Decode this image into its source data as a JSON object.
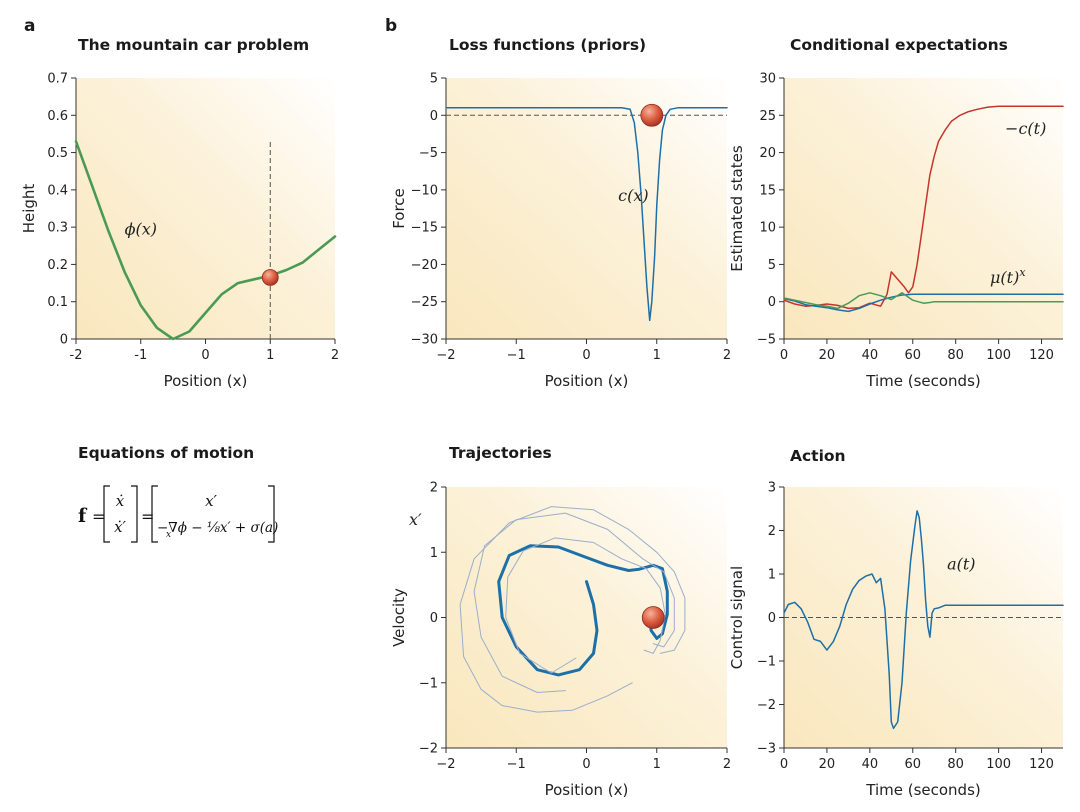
{
  "labels": {
    "a": "a",
    "b": "b"
  },
  "colors": {
    "bg_warm": "#f9e7bd",
    "green": "#4a9a55",
    "blue": "#1d6fa8",
    "red": "#c8342b",
    "light_blue": "#9aaecb",
    "ball_light": "#f2a488",
    "ball_dark": "#b83a26",
    "dash": "#555555"
  },
  "equations": {
    "title": "Equations of motion",
    "lhs": "f",
    "eq1": "=",
    "eq2": "=",
    "vec_top": "ẋ",
    "vec_bottom": "ẋ′",
    "rhs_top": "x′",
    "rhs_bottom": "−∇ϕ − ⅛x′ + σ(a)",
    "nabla_sub": "x"
  },
  "chart_data": [
    {
      "id": "mountain",
      "type": "line",
      "title": "The mountain car problem",
      "xlabel": "Position (x)",
      "ylabel": "Height",
      "xlim": [
        -2,
        2
      ],
      "ylim": [
        0,
        0.7
      ],
      "xticks": [
        -2,
        -1,
        0,
        1,
        2
      ],
      "xtick_labels": [
        "-2",
        "-1",
        "0",
        "1",
        "2"
      ],
      "yticks": [
        0,
        0.1,
        0.2,
        0.3,
        0.4,
        0.5,
        0.6,
        0.7
      ],
      "ytick_labels": [
        "0",
        "0.1",
        "0.2",
        "0.3",
        "0.4",
        "0.5",
        "0.6",
        "0.7"
      ],
      "series": [
        {
          "name": "phi",
          "color": "green",
          "x": [
            -2,
            -1.75,
            -1.5,
            -1.25,
            -1,
            -0.75,
            -0.5,
            -0.25,
            0,
            0.25,
            0.5,
            0.75,
            1,
            1.25,
            1.5,
            1.75,
            2
          ],
          "y": [
            0.53,
            0.41,
            0.29,
            0.18,
            0.09,
            0.03,
            0.0,
            0.02,
            0.07,
            0.12,
            0.15,
            0.16,
            0.17,
            0.185,
            0.205,
            0.24,
            0.275
          ]
        }
      ],
      "annotations": [
        {
          "text": "ϕ(x)",
          "x": -1.25,
          "y": 0.28
        }
      ],
      "vline": 1,
      "ball": {
        "x": 1,
        "y": 0.165
      }
    },
    {
      "id": "loss",
      "type": "line",
      "title": "Loss functions (priors)",
      "xlabel": "Position (x)",
      "ylabel": "Force",
      "xlim": [
        -2,
        2
      ],
      "ylim": [
        -30,
        5
      ],
      "xticks": [
        -2,
        -1,
        0,
        1,
        2
      ],
      "xtick_labels": [
        "−2",
        "−1",
        "0",
        "1",
        "2"
      ],
      "yticks": [
        -30,
        -25,
        -20,
        -15,
        -10,
        -5,
        0,
        5
      ],
      "ytick_labels": [
        "−30",
        "−25",
        "−20",
        "−15",
        "−10",
        "−5",
        "0",
        "5"
      ],
      "series": [
        {
          "name": "c",
          "color": "blue",
          "x": [
            -2,
            0.5,
            0.62,
            0.68,
            0.73,
            0.78,
            0.82,
            0.86,
            0.9,
            0.93,
            0.97,
            1.0,
            1.04,
            1.08,
            1.13,
            1.19,
            1.3,
            2
          ],
          "y": [
            1,
            1,
            0.8,
            -1,
            -5,
            -11,
            -17,
            -23,
            -27.5,
            -25,
            -19,
            -12,
            -6,
            -2,
            0,
            0.8,
            1,
            1
          ]
        }
      ],
      "annotations": [
        {
          "text": "c(x)",
          "x": 0.45,
          "y": -11.5
        }
      ],
      "hline": 0,
      "ball": {
        "x": 0.93,
        "y": 0
      }
    },
    {
      "id": "cond",
      "type": "line",
      "title": "Conditional expectations",
      "xlabel": "Time (seconds)",
      "ylabel": "Estimated states",
      "xlim": [
        0,
        130
      ],
      "ylim": [
        -5,
        30
      ],
      "xticks": [
        0,
        20,
        40,
        60,
        80,
        100,
        120
      ],
      "xtick_labels": [
        "0",
        "20",
        "40",
        "60",
        "80",
        "100",
        "120"
      ],
      "yticks": [
        -5,
        0,
        5,
        10,
        15,
        20,
        25,
        30
      ],
      "ytick_labels": [
        "−5",
        "0",
        "5",
        "10",
        "15",
        "20",
        "25",
        "30"
      ],
      "series": [
        {
          "name": "-c(t)",
          "color": "red",
          "x": [
            0,
            5,
            10,
            15,
            20,
            25,
            30,
            35,
            40,
            45,
            48,
            50,
            53,
            56,
            58,
            60,
            62,
            64,
            66,
            68,
            70,
            72,
            75,
            78,
            82,
            86,
            90,
            95,
            100,
            110,
            120,
            130
          ],
          "y": [
            0.2,
            -0.3,
            -0.6,
            -0.5,
            -0.3,
            -0.5,
            -0.9,
            -0.8,
            -0.2,
            -0.6,
            1,
            4,
            3,
            2,
            1.2,
            2,
            5,
            9,
            13,
            17,
            19.5,
            21.5,
            23,
            24.2,
            25,
            25.5,
            25.8,
            26.1,
            26.2,
            26.2,
            26.2,
            26.2
          ]
        },
        {
          "name": "mu",
          "color": "blue",
          "x": [
            0,
            5,
            10,
            15,
            20,
            25,
            30,
            35,
            40,
            45,
            50,
            55,
            60,
            65,
            70,
            80,
            90,
            100,
            110,
            120,
            130
          ],
          "y": [
            0.4,
            0.1,
            -0.4,
            -0.6,
            -0.8,
            -1.1,
            -1.3,
            -0.9,
            -0.3,
            0.2,
            0.6,
            0.9,
            1.0,
            1.0,
            1.0,
            1.0,
            1.0,
            1.0,
            1.0,
            1.0,
            1.0
          ]
        },
        {
          "name": "green",
          "color": "green",
          "x": [
            0,
            5,
            10,
            15,
            20,
            25,
            30,
            35,
            40,
            45,
            50,
            55,
            60,
            65,
            68,
            70,
            80,
            90,
            100,
            110,
            120,
            130
          ],
          "y": [
            0.5,
            0.2,
            -0.1,
            -0.4,
            -0.6,
            -0.9,
            -0.2,
            0.8,
            1.2,
            0.8,
            0.3,
            1.2,
            0.2,
            -0.2,
            -0.1,
            0,
            0,
            0,
            0,
            0,
            0,
            0
          ]
        }
      ],
      "annotations": [
        {
          "text": "−c(t)",
          "x": 103,
          "y": 22.5
        },
        {
          "text": "μ(t)",
          "x": 96,
          "y": 2.5,
          "sup": "x"
        }
      ]
    },
    {
      "id": "traj",
      "type": "line",
      "title": "Trajectories",
      "xlabel": "Position (x)",
      "ylabel": "Velocity",
      "corner_label": "x′",
      "xlim": [
        -2,
        2
      ],
      "ylim": [
        -2,
        2
      ],
      "xticks": [
        -2,
        -1,
        0,
        1,
        2
      ],
      "xtick_labels": [
        "−2",
        "−1",
        "0",
        "1",
        "2"
      ],
      "yticks": [
        -2,
        -1,
        0,
        1,
        2
      ],
      "ytick_labels": [
        "−2",
        "−1",
        "0",
        "1",
        "2"
      ],
      "series": [
        {
          "name": "main",
          "color": "blue",
          "width": 3,
          "x": [
            0,
            0.1,
            0.15,
            0.1,
            -0.1,
            -0.4,
            -0.7,
            -1.0,
            -1.2,
            -1.25,
            -1.1,
            -0.8,
            -0.4,
            0,
            0.3,
            0.6,
            0.75,
            0.95,
            1.08,
            1.15,
            1.15,
            1.08,
            1.0,
            0.92,
            0.9
          ],
          "y": [
            0.55,
            0.2,
            -0.2,
            -0.55,
            -0.8,
            -0.88,
            -0.8,
            -0.45,
            0,
            0.55,
            0.95,
            1.1,
            1.08,
            0.92,
            0.8,
            0.72,
            0.74,
            0.8,
            0.75,
            0.4,
            0.05,
            -0.25,
            -0.32,
            -0.2,
            0.02
          ]
        },
        {
          "name": "ghost1",
          "color": "light_blue",
          "width": 1,
          "x": [
            -0.3,
            -0.7,
            -1.2,
            -1.5,
            -1.6,
            -1.45,
            -1.0,
            -0.3,
            0.3,
            0.8,
            1.1,
            1.25,
            1.25,
            1.1,
            0.95
          ],
          "y": [
            -1.12,
            -1.15,
            -0.9,
            -0.3,
            0.4,
            1.1,
            1.5,
            1.6,
            1.35,
            0.9,
            0.7,
            0.3,
            -0.2,
            -0.45,
            -0.4
          ]
        },
        {
          "name": "ghost2",
          "color": "light_blue",
          "width": 1,
          "x": [
            0.65,
            0.3,
            -0.2,
            -0.7,
            -1.2,
            -1.5,
            -1.75,
            -1.8,
            -1.6,
            -1.1,
            -0.5,
            0.1,
            0.6,
            1.0,
            1.25,
            1.4,
            1.4,
            1.25,
            1.05
          ],
          "y": [
            -1.0,
            -1.2,
            -1.42,
            -1.45,
            -1.35,
            -1.1,
            -0.6,
            0.2,
            0.9,
            1.45,
            1.7,
            1.65,
            1.35,
            1.0,
            0.7,
            0.3,
            -0.2,
            -0.5,
            -0.55
          ]
        },
        {
          "name": "ghost3",
          "color": "light_blue",
          "width": 1,
          "x": [
            -0.15,
            -0.5,
            -0.95,
            -1.15,
            -1.12,
            -0.9,
            -0.45,
            0.1,
            0.5,
            0.85,
            1.05,
            1.12,
            1.05,
            0.95,
            0.82
          ],
          "y": [
            -0.62,
            -0.85,
            -0.55,
            0,
            0.62,
            1.02,
            1.22,
            1.15,
            0.9,
            0.75,
            0.45,
            0.05,
            -0.35,
            -0.55,
            -0.5
          ]
        }
      ],
      "ball": {
        "x": 0.95,
        "y": 0
      }
    },
    {
      "id": "action",
      "type": "line",
      "title": "Action",
      "xlabel": "Time (seconds)",
      "ylabel": "Control signal",
      "xlim": [
        0,
        130
      ],
      "ylim": [
        -3,
        3
      ],
      "xticks": [
        0,
        20,
        40,
        60,
        80,
        100,
        120
      ],
      "xtick_labels": [
        "0",
        "20",
        "40",
        "60",
        "80",
        "100",
        "120"
      ],
      "yticks": [
        -3,
        -2,
        -1,
        0,
        1,
        2,
        3
      ],
      "ytick_labels": [
        "−3",
        "−2",
        "−1",
        "0",
        "1",
        "2",
        "3"
      ],
      "series": [
        {
          "name": "a",
          "color": "blue",
          "x": [
            0,
            2,
            5,
            8,
            11,
            14,
            17,
            20,
            23,
            26,
            29,
            32,
            35,
            38,
            41,
            43,
            45,
            47,
            49,
            50,
            51,
            53,
            55,
            57,
            59,
            61,
            62,
            63,
            64,
            65,
            66,
            67,
            68,
            69,
            70,
            72,
            75,
            80,
            90,
            100,
            110,
            120,
            130
          ],
          "y": [
            0.1,
            0.3,
            0.35,
            0.2,
            -0.1,
            -0.5,
            -0.55,
            -0.75,
            -0.55,
            -0.2,
            0.3,
            0.65,
            0.85,
            0.95,
            1.0,
            0.8,
            0.9,
            0.2,
            -1.3,
            -2.4,
            -2.55,
            -2.4,
            -1.5,
            0.1,
            1.3,
            2.1,
            2.45,
            2.3,
            1.8,
            1.2,
            0.4,
            -0.2,
            -0.45,
            0.1,
            0.2,
            0.22,
            0.28,
            0.28,
            0.28,
            0.28,
            0.28,
            0.28,
            0.28
          ]
        }
      ],
      "annotations": [
        {
          "text": "a(t)",
          "x": 76,
          "y": 1.1
        }
      ],
      "hline": 0
    }
  ]
}
